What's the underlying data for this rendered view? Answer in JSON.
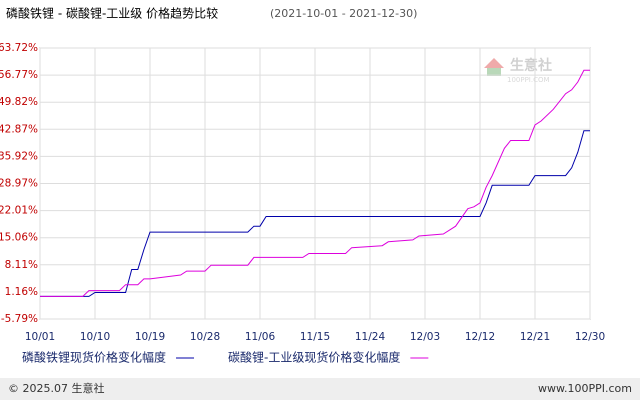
{
  "chart_data": {
    "type": "line",
    "title": "磷酸铁锂 - 碳酸锂-工业级 价格趋势比较",
    "subtitle": "(2021-10-01 - 2021-12-30)",
    "watermark": "生意社",
    "watermark_url": "100PPI.COM",
    "footer_left": "© 2025.07 生意社",
    "footer_right": "www.100PPI.com",
    "x": [
      "10/01",
      "10/08",
      "10/09",
      "10/10",
      "10/14",
      "10/15",
      "10/16",
      "10/17",
      "10/18",
      "10/19",
      "10/24",
      "10/25",
      "10/28",
      "10/29",
      "11/04",
      "11/05",
      "11/06",
      "11/07",
      "11/13",
      "11/14",
      "11/20",
      "11/21",
      "11/26",
      "11/27",
      "12/01",
      "12/02",
      "12/06",
      "12/08",
      "12/10",
      "12/11",
      "12/12",
      "12/13",
      "12/14",
      "12/16",
      "12/17",
      "12/20",
      "12/21",
      "12/22",
      "12/24",
      "12/26",
      "12/27",
      "12/28",
      "12/29",
      "12/30"
    ],
    "xticks": [
      "10/01",
      "10/10",
      "10/19",
      "10/28",
      "11/06",
      "11/15",
      "11/24",
      "12/03",
      "12/12",
      "12/21",
      "12/30"
    ],
    "series": [
      {
        "name": "磷酸铁锂现货价格变化幅度",
        "color": "#0000aa",
        "values": [
          0,
          0,
          0,
          1,
          1,
          1,
          6.9,
          6.9,
          12,
          16.5,
          16.5,
          16.5,
          16.5,
          16.5,
          16.5,
          18,
          18,
          20.5,
          20.5,
          20.5,
          20.5,
          20.5,
          20.5,
          20.5,
          20.5,
          20.5,
          20.5,
          20.5,
          20.5,
          20.5,
          20.5,
          24,
          28.5,
          28.5,
          28.5,
          28.5,
          31,
          31,
          31,
          31,
          33,
          37,
          42.5,
          42.5
        ]
      },
      {
        "name": "碳酸锂-工业级现货价格变化幅度",
        "color": "#dd00dd",
        "values": [
          0,
          0,
          1.5,
          1.5,
          1.5,
          3,
          3,
          3,
          4.5,
          4.5,
          5.5,
          6.5,
          6.5,
          8,
          8,
          10,
          10,
          10,
          10,
          11,
          11,
          12.5,
          13,
          14,
          14.5,
          15.5,
          16,
          18,
          22.5,
          23,
          24,
          28,
          31,
          38,
          40,
          40,
          44,
          45,
          48,
          52,
          53,
          55,
          58,
          58
        ]
      }
    ],
    "ylim": [
      -5.79,
      63.72
    ],
    "yticks": [
      {
        "value": -5.79,
        "label": "-5.79%"
      },
      {
        "value": 1.16,
        "label": "1.16%"
      },
      {
        "value": 8.11,
        "label": "8.11%"
      },
      {
        "value": 15.06,
        "label": "15.06%"
      },
      {
        "value": 22.01,
        "label": "22.01%"
      },
      {
        "value": 28.97,
        "label": "28.97%"
      },
      {
        "value": 35.92,
        "label": "35.92%"
      },
      {
        "value": 42.87,
        "label": "42.87%"
      },
      {
        "value": 49.82,
        "label": "49.82%"
      },
      {
        "value": 56.77,
        "label": "56.77%"
      },
      {
        "value": 63.72,
        "label": "63.72%"
      }
    ],
    "grid": true
  }
}
